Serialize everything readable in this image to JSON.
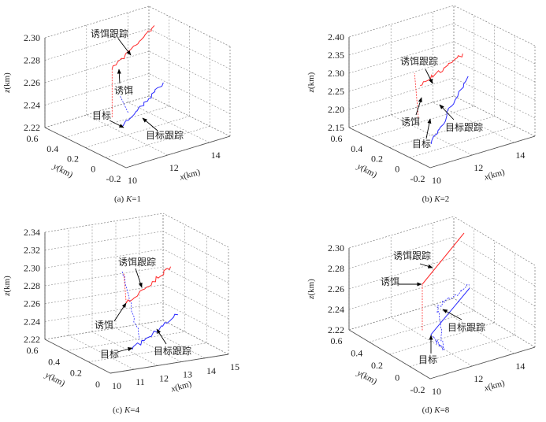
{
  "colors": {
    "target": "#2b2bff",
    "decoy": "#ff2b2b",
    "grid": "#8a8a8a"
  },
  "chart_data": [
    {
      "type": "line3d",
      "caption_prefix": "(a)",
      "caption_var": "K",
      "caption_value": "=1",
      "xlabel": "x",
      "ylabel": "y",
      "zlabel": "z",
      "unit": "(km)",
      "xlim": [
        10,
        15
      ],
      "ylim": [
        -0.2,
        0.6
      ],
      "zlim": [
        2.22,
        2.3
      ],
      "xticks": [
        "10",
        "12",
        "14"
      ],
      "yticks": [
        "-0.2",
        "0",
        "0.2",
        "0.4",
        "0.6"
      ],
      "zticks": [
        "2.22",
        "2.24",
        "2.26",
        "2.28",
        "2.30"
      ],
      "grid": true,
      "annotations": {
        "decoy_track": "诱饵跟踪",
        "decoy": "诱饵",
        "target": "目标",
        "target_track": "目标跟踪"
      },
      "series": [
        {
          "name": "目标跟踪",
          "color": "target",
          "style": "solid",
          "noise": true,
          "points": [
            [
              12.07,
              0.26,
              2.225
            ],
            [
              13.4,
              0.13,
              2.262
            ]
          ]
        },
        {
          "name": "目标",
          "color": "target",
          "style": "dashed",
          "noise": false,
          "points": [
            [
              12.1,
              0.288,
              2.25
            ],
            [
              12.8,
              0.35,
              2.228
            ]
          ]
        },
        {
          "name": "诱饵",
          "color": "decoy",
          "style": "dashed",
          "noise": false,
          "points": [
            [
              12.5,
              0.45,
              2.222
            ],
            [
              12.5,
              0.45,
              2.265
            ]
          ]
        },
        {
          "name": "诱饵跟踪",
          "color": "decoy",
          "style": "solid",
          "noise": true,
          "points": [
            [
              12.5,
              0.45,
              2.265
            ],
            [
              13.8,
              0.3,
              2.303
            ]
          ]
        }
      ]
    },
    {
      "type": "line3d",
      "caption_prefix": "(b)",
      "caption_var": "K",
      "caption_value": "=2",
      "xlabel": "x",
      "ylabel": "y",
      "zlabel": "z",
      "unit": "(km)",
      "xlim": [
        10,
        15
      ],
      "ylim": [
        -0.2,
        0.6
      ],
      "zlim": [
        2.15,
        2.4
      ],
      "xticks": [
        "10",
        "12",
        "14"
      ],
      "yticks": [
        "-0.2",
        "0",
        "0.2",
        "0.4",
        "0.6"
      ],
      "zticks": [
        "2.15",
        "2.20",
        "2.25",
        "2.30",
        "2.35",
        "2.40"
      ],
      "grid": true,
      "annotations": {
        "decoy_track": "诱饵跟踪",
        "decoy": "诱饵",
        "target": "目标",
        "target_track": "目标跟踪"
      },
      "series": [
        {
          "name": "目标跟踪",
          "color": "target",
          "style": "solid",
          "noise": true,
          "points": [
            [
              11.23,
              0.045,
              2.16
            ],
            [
              13.35,
              0.118,
              2.3
            ]
          ]
        },
        {
          "name": "诱饵",
          "color": "decoy",
          "style": "dashed",
          "noise": false,
          "points": [
            [
              11.99,
              0.328,
              2.18
            ],
            [
              12.16,
              0.4,
              2.29
            ]
          ]
        },
        {
          "name": "诱饵跟踪",
          "color": "decoy",
          "style": "solid",
          "noise": true,
          "points": [
            [
              13.1,
              0.54,
              2.22
            ],
            [
              13.9,
              0.285,
              2.33
            ]
          ]
        }
      ]
    },
    {
      "type": "line3d",
      "caption_prefix": "(c)",
      "caption_var": "K",
      "caption_value": "=4",
      "xlabel": "x",
      "ylabel": "y",
      "zlabel": "z",
      "unit": "(km)",
      "xlim": [
        10,
        15
      ],
      "ylim": [
        0,
        0.6
      ],
      "zlim": [
        2.22,
        2.34
      ],
      "xticks": [
        "10",
        "11",
        "12",
        "13",
        "14",
        "15"
      ],
      "yticks": [
        "0",
        "0.2",
        "0.4",
        "0.6"
      ],
      "zticks": [
        "2.22",
        "2.24",
        "2.26",
        "2.28",
        "2.30",
        "2.32",
        "2.34"
      ],
      "grid": true,
      "annotations": {
        "decoy_track": "诱饵跟踪",
        "decoy": "诱饵",
        "target": "目标",
        "target_track": "目标跟踪"
      },
      "series": [
        {
          "name": "目标",
          "color": "target",
          "style": "dashed",
          "noise": true,
          "points": [
            [
              11.71,
              0.262,
              2.31
            ],
            [
              12.78,
              0.335,
              2.225
            ]
          ]
        },
        {
          "name": "目标跟踪",
          "color": "target",
          "style": "solid",
          "noise": true,
          "points": [
            [
              11.9,
              0.211,
              2.225
            ],
            [
              14.45,
              0.344,
              2.245
            ]
          ]
        },
        {
          "name": "诱饵",
          "color": "decoy",
          "style": "dashed",
          "noise": false,
          "points": [
            [
              12.74,
              0.47,
              2.29
            ],
            [
              12.55,
              0.407,
              2.262
            ]
          ]
        },
        {
          "name": "诱饵跟踪",
          "color": "decoy",
          "style": "solid",
          "noise": true,
          "points": [
            [
              12.55,
              0.407,
              2.262
            ],
            [
              14.7,
              0.466,
              2.29
            ]
          ]
        }
      ]
    },
    {
      "type": "line3d",
      "caption_prefix": "(d)",
      "caption_var": "K",
      "caption_value": "=8",
      "xlabel": "x",
      "ylabel": "y",
      "zlabel": "z",
      "unit": "(km)",
      "xlim": [
        10,
        15
      ],
      "ylim": [
        -0.2,
        0.6
      ],
      "zlim": [
        2.22,
        2.3
      ],
      "xticks": [
        "10",
        "12",
        "14"
      ],
      "yticks": [
        "-0.2",
        "0",
        "0.2",
        "0.4",
        "0.6"
      ],
      "zticks": [
        "2.22",
        "2.24",
        "2.26",
        "2.28",
        "2.30"
      ],
      "grid": true,
      "annotations": {
        "decoy_track": "诱饵跟踪",
        "decoy": "诱饵",
        "target": "目标",
        "target_track": "目标跟踪"
      },
      "series": [
        {
          "name": "诱饵",
          "color": "decoy",
          "style": "dashed",
          "noise": false,
          "points": [
            [
              12.31,
              0.355,
              2.22
            ],
            [
              12.31,
              0.355,
              2.265
            ]
          ]
        },
        {
          "name": "诱饵跟踪",
          "color": "decoy",
          "style": "solid",
          "noise": false,
          "points": [
            [
              12.31,
              0.355,
              2.265
            ],
            [
              14.18,
              0.33,
              2.305
            ]
          ]
        },
        {
          "name": "目标跟踪",
          "color": "target",
          "style": "solid",
          "noise": false,
          "points": [
            [
              12.08,
              0.223,
              2.225
            ],
            [
              14.15,
              0.269,
              2.255
            ]
          ]
        },
        {
          "name": "目标",
          "color": "target",
          "style": "dashed",
          "noise": true,
          "points": [
            [
              12.08,
              0.223,
              2.225
            ],
            [
              11.83,
              0.046,
              2.222
            ],
            [
              12.39,
              0.224,
              2.25
            ],
            [
              14.15,
              0.269,
              2.258
            ]
          ]
        }
      ]
    }
  ]
}
